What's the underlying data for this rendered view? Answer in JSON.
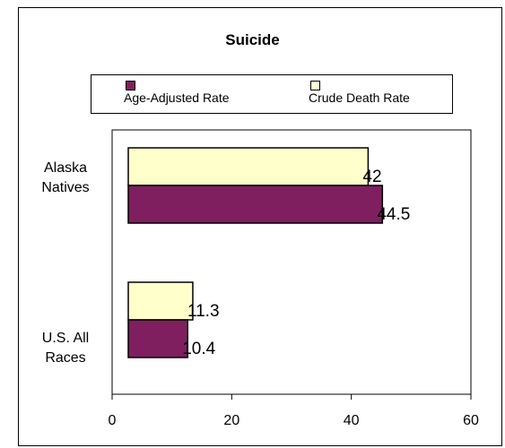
{
  "chart_data": {
    "type": "bar",
    "orientation": "horizontal",
    "title": "Suicide",
    "categories": [
      "Alaska Natives",
      "U.S. All Races"
    ],
    "category_lines": [
      [
        "Alaska",
        "Natives"
      ],
      [
        "U.S. All",
        "Races"
      ]
    ],
    "series": [
      {
        "name": "Crude Death Rate",
        "values": [
          42,
          11.3
        ],
        "color": "#ffffcc"
      },
      {
        "name": "Age-Adjusted Rate",
        "values": [
          44.5,
          10.4
        ],
        "color": "#7f1f5f"
      }
    ],
    "legend_order": [
      "Age-Adjusted Rate",
      "Crude Death Rate"
    ],
    "xlim": [
      0,
      60
    ],
    "xticks": [
      "0",
      "20",
      "40",
      "60"
    ],
    "xlabel": "",
    "ylabel": "",
    "grid": false,
    "legend_position": "top"
  }
}
